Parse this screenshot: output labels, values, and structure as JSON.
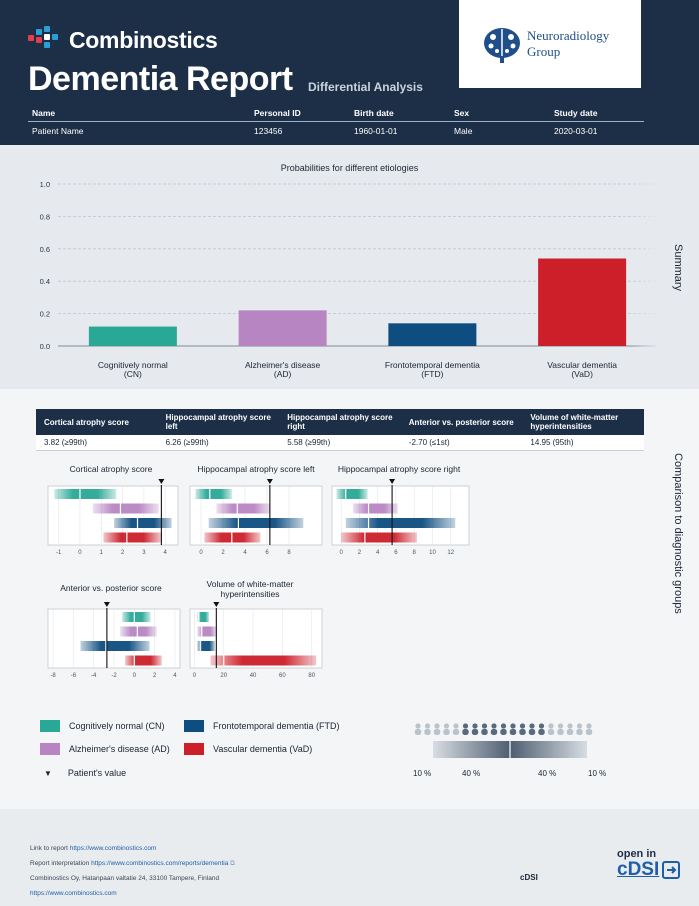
{
  "header": {
    "brand_name": "Combinostics",
    "title": "Dementia Report",
    "subtitle": "Differential Analysis",
    "partner_line1": "Neuroradiology",
    "partner_line2": "Group"
  },
  "patient": {
    "headers": [
      "Name",
      "Personal ID",
      "Birth date",
      "Sex",
      "Study date"
    ],
    "values": [
      "Patient Name",
      "123456",
      "1960-01-01",
      "Male",
      "2020-03-01"
    ]
  },
  "summary": {
    "side_label": "Summary"
  },
  "comparison": {
    "side_label": "Comparison to diagnostic groups",
    "score_headers": [
      "Cortical atrophy score",
      "Hippocampal atrophy score left",
      "Hippocampal atrophy score right",
      "Anterior vs. posterior score",
      "Volume of white-matter hyperintensities"
    ],
    "score_values": [
      "3.82 (≥99th)",
      "6.26 (≥99th)",
      "5.58 (≥99th)",
      "-2.70 (≤1st)",
      "14.95 (95th)"
    ]
  },
  "legend": {
    "items": [
      {
        "label": "Cognitively normal (CN)",
        "color": "#2aa896"
      },
      {
        "label": "Frontotemporal dementia (FTD)",
        "color": "#0d4d80"
      },
      {
        "label": "Alzheimer's disease (AD)",
        "color": "#b785c2"
      },
      {
        "label": "Vascular dementia (VaD)",
        "color": "#cc1f2a"
      }
    ],
    "patient_value_label": "Patient's value",
    "percentile_labels": [
      "10 %",
      "40 %",
      "40 %",
      "10 %"
    ]
  },
  "footer": {
    "link_label": "Link to report",
    "link_url": "https://www.combinostics.com",
    "interp_label": "Report interpretation",
    "interp_url": "https://www.combinostics.com/reports/dementia",
    "address": "Combinostics Oy, Hatanpaan valtatie 24, 33100 Tampere, Finland",
    "site_url": "https://www.combinostics.com",
    "cdsi_small": "cDSI",
    "open_in": "open in",
    "open_in_brand": "cDSI"
  },
  "chart_data": [
    {
      "type": "bar",
      "title": "Probabilities for different etiologies",
      "categories": [
        "Cognitively normal (CN)",
        "Alzheimer's disease (AD)",
        "Frontotemporal dementia (FTD)",
        "Vascular dementia (VaD)"
      ],
      "category_lines": [
        [
          "Cognitively normal",
          "(CN)"
        ],
        [
          "Alzheimer's disease",
          "(AD)"
        ],
        [
          "Frontotemporal dementia",
          "(FTD)"
        ],
        [
          "Vascular dementia",
          "(VaD)"
        ]
      ],
      "values": [
        0.12,
        0.22,
        0.14,
        0.54
      ],
      "colors": [
        "#2aa896",
        "#b785c2",
        "#0d4d80",
        "#cc1f2a"
      ],
      "ylim": [
        0,
        1
      ],
      "yticks": [
        "0.0",
        "0.2",
        "0.4",
        "0.6",
        "0.8",
        "1.0"
      ],
      "grid": true
    },
    {
      "type": "bar",
      "title": "Cortical atrophy score",
      "patient_value": 3.82,
      "xlim": [
        -1.5,
        4.6
      ],
      "xticks": [
        -1,
        0,
        1,
        2,
        3,
        4
      ],
      "groups": [
        {
          "name": "CN",
          "range": [
            -1.2,
            1.7
          ],
          "median": 0.0
        },
        {
          "name": "AD",
          "range": [
            0.6,
            3.7
          ],
          "median": 1.9
        },
        {
          "name": "FTD",
          "range": [
            1.6,
            4.3
          ],
          "median": 2.7
        },
        {
          "name": "VaD",
          "range": [
            1.1,
            3.8
          ],
          "median": 2.2
        }
      ]
    },
    {
      "type": "bar",
      "title": "Hippocampal atrophy score left",
      "patient_value": 6.26,
      "xlim": [
        -1,
        11
      ],
      "xticks": [
        0,
        2,
        4,
        6,
        8
      ],
      "groups": [
        {
          "name": "CN",
          "range": [
            -0.5,
            2.8
          ],
          "median": 0.8
        },
        {
          "name": "AD",
          "range": [
            1.4,
            6.3
          ],
          "median": 3.3
        },
        {
          "name": "FTD",
          "range": [
            0.7,
            9.3
          ],
          "median": 3.4
        },
        {
          "name": "VaD",
          "range": [
            0.3,
            5.4
          ],
          "median": 2.8
        }
      ]
    },
    {
      "type": "bar",
      "title": "Hippocampal atrophy score right",
      "patient_value": 5.58,
      "xlim": [
        -1,
        14
      ],
      "xticks": [
        0,
        2,
        4,
        6,
        8,
        10,
        12
      ],
      "groups": [
        {
          "name": "CN",
          "range": [
            -0.5,
            2.9
          ],
          "median": 0.5
        },
        {
          "name": "AD",
          "range": [
            1.3,
            6.2
          ],
          "median": 3.0
        },
        {
          "name": "FTD",
          "range": [
            0.5,
            12.5
          ],
          "median": 3.0
        },
        {
          "name": "VaD",
          "range": [
            0.0,
            8.3
          ],
          "median": 2.6
        }
      ]
    },
    {
      "type": "bar",
      "title": "Anterior vs. posterior score",
      "patient_value": -2.7,
      "xlim": [
        -8.5,
        4.5
      ],
      "xticks": [
        -8,
        -6,
        -4,
        -2,
        0,
        2,
        4
      ],
      "groups": [
        {
          "name": "CN",
          "range": [
            -1.2,
            1.6
          ],
          "median": 0.0
        },
        {
          "name": "AD",
          "range": [
            -1.4,
            2.2
          ],
          "median": 0.3
        },
        {
          "name": "FTD",
          "range": [
            -5.3,
            1.5
          ],
          "median": -2.8
        },
        {
          "name": "VaD",
          "range": [
            -0.9,
            2.7
          ],
          "median": 0.0
        }
      ]
    },
    {
      "type": "bar",
      "title": "Volume of white-matter hyperintensities",
      "patient_value": 14.95,
      "xlim": [
        -3,
        87
      ],
      "xticks": [
        0,
        20,
        40,
        60,
        80
      ],
      "groups": [
        {
          "name": "CN",
          "range": [
            2,
            10
          ],
          "median": 3
        },
        {
          "name": "AD",
          "range": [
            2,
            15
          ],
          "median": 5
        },
        {
          "name": "FTD",
          "range": [
            2,
            14
          ],
          "median": 4
        },
        {
          "name": "VaD",
          "range": [
            11,
            83
          ],
          "median": 20
        }
      ]
    }
  ]
}
